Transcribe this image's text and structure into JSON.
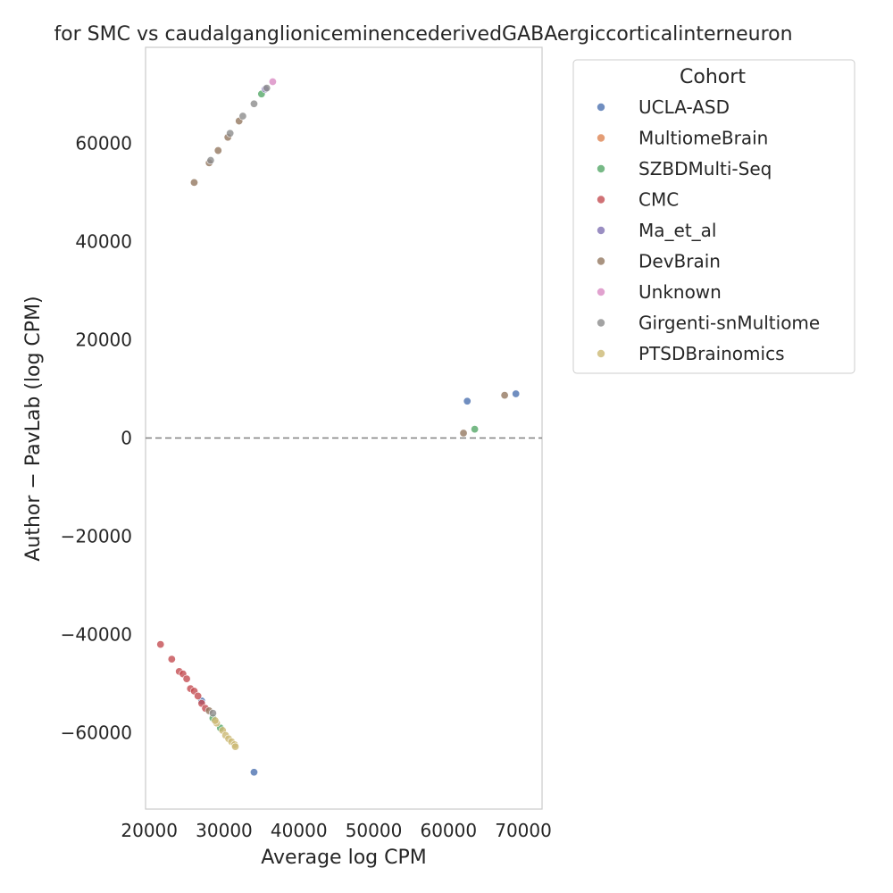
{
  "chart_data": {
    "type": "scatter",
    "title": "for SMC vs caudalganglioniceminencederivedGABAergiccorticalinterneuron",
    "xlabel": "Average log CPM",
    "ylabel": "Author − PavLab (log CPM)",
    "xlim": [
      19500,
      72500
    ],
    "ylim": [
      -75500,
      79500
    ],
    "x_ticks": [
      20000,
      30000,
      40000,
      50000,
      60000,
      70000
    ],
    "x_tick_labels": [
      "20000",
      "30000",
      "40000",
      "50000",
      "60000",
      "70000"
    ],
    "y_ticks": [
      -60000,
      -40000,
      -20000,
      0,
      20000,
      40000,
      60000
    ],
    "y_tick_labels": [
      "−60000",
      "−40000",
      "−20000",
      "0",
      "20000",
      "40000",
      "60000"
    ],
    "reference_line": {
      "y": 0,
      "style": "dashed",
      "color": "#808080"
    },
    "grid": false,
    "legend": {
      "title": "Cohort",
      "placement": "outside-top-right"
    },
    "series": [
      {
        "name": "UCLA-ASD",
        "color": "#4c72b0",
        "points": [
          [
            62500,
            7500
          ],
          [
            69000,
            9000
          ],
          [
            34000,
            -68000
          ],
          [
            27000,
            -53500
          ]
        ]
      },
      {
        "name": "MultiomeBrain",
        "color": "#dd8452",
        "points": []
      },
      {
        "name": "SZBDMulti-Seq",
        "color": "#55a868",
        "points": [
          [
            63500,
            1800
          ],
          [
            35000,
            70000
          ],
          [
            28500,
            -57000
          ],
          [
            29500,
            -59000
          ]
        ]
      },
      {
        "name": "CMC",
        "color": "#c44e52",
        "points": [
          [
            21500,
            -42000
          ],
          [
            23000,
            -45000
          ],
          [
            24000,
            -47500
          ],
          [
            24500,
            -48000
          ],
          [
            25000,
            -49000
          ],
          [
            25500,
            -51000
          ],
          [
            26000,
            -51500
          ],
          [
            26500,
            -52500
          ],
          [
            27000,
            -54000
          ],
          [
            27500,
            -55000
          ]
        ]
      },
      {
        "name": "Ma_et_al",
        "color": "#8172b3",
        "points": [
          [
            35500,
            71000
          ]
        ]
      },
      {
        "name": "DevBrain",
        "color": "#937860",
        "points": [
          [
            26000,
            52000
          ],
          [
            28000,
            56000
          ],
          [
            29200,
            58500
          ],
          [
            30500,
            61200
          ],
          [
            32000,
            64500
          ],
          [
            62000,
            1000
          ],
          [
            67500,
            8700
          ],
          [
            28000,
            -55500
          ]
        ]
      },
      {
        "name": "Unknown",
        "color": "#da8bc3",
        "points": [
          [
            36500,
            72500
          ]
        ]
      },
      {
        "name": "Girgenti-snMultiome",
        "color": "#8c8c8c",
        "points": [
          [
            28200,
            56500
          ],
          [
            30800,
            62000
          ],
          [
            32500,
            65500
          ],
          [
            34000,
            68000
          ],
          [
            35700,
            71200
          ],
          [
            28500,
            -56000
          ]
        ]
      },
      {
        "name": "PTSDBrainomics",
        "color": "#ccb974",
        "points": [
          [
            29000,
            -58000
          ],
          [
            29800,
            -59500
          ],
          [
            30200,
            -60500
          ],
          [
            30600,
            -61200
          ],
          [
            31000,
            -61800
          ],
          [
            31400,
            -62400
          ],
          [
            31500,
            -62800
          ],
          [
            28800,
            -57500
          ]
        ]
      }
    ]
  }
}
